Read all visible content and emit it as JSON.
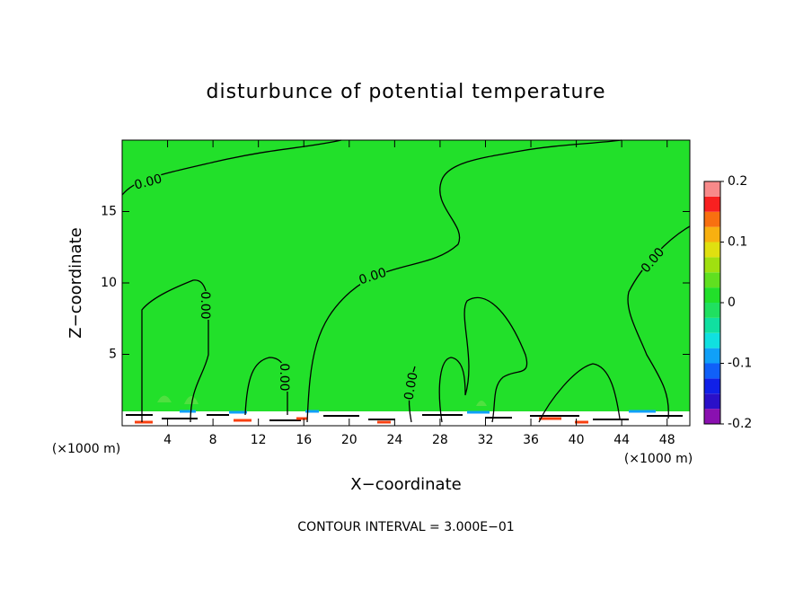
{
  "chart_data": {
    "type": "contour",
    "title": "disturbunce of potential temperature",
    "x_label": "X−coordinate",
    "y_label": "Z−coordinate",
    "x_unit": "(×1000 m)",
    "footer": "CONTOUR INTERVAL = 3.000E−01",
    "field_color": "#22e02a",
    "xlim": [
      0,
      50
    ],
    "xticks": [
      4,
      8,
      12,
      16,
      20,
      24,
      28,
      32,
      36,
      40,
      44,
      48
    ],
    "ylim": [
      0,
      20
    ],
    "yticks": [
      5,
      10,
      15
    ],
    "contour_labels": [
      "0.00",
      "0.00",
      "0.00",
      "0.00",
      "0.00",
      "0.00"
    ],
    "colorbar": {
      "lim": [
        -0.2,
        0.2
      ],
      "ticks": [
        -0.2,
        -0.1,
        0,
        0.1,
        0.2
      ],
      "colors": [
        "#8a10b0",
        "#2a10c8",
        "#1020e8",
        "#1060f8",
        "#10a0f8",
        "#10e0e0",
        "#10e0a0",
        "#20e060",
        "#22e02a",
        "#60e020",
        "#a0e010",
        "#e0e010",
        "#f8b010",
        "#f87010",
        "#f82020",
        "#f88a8a"
      ]
    }
  }
}
